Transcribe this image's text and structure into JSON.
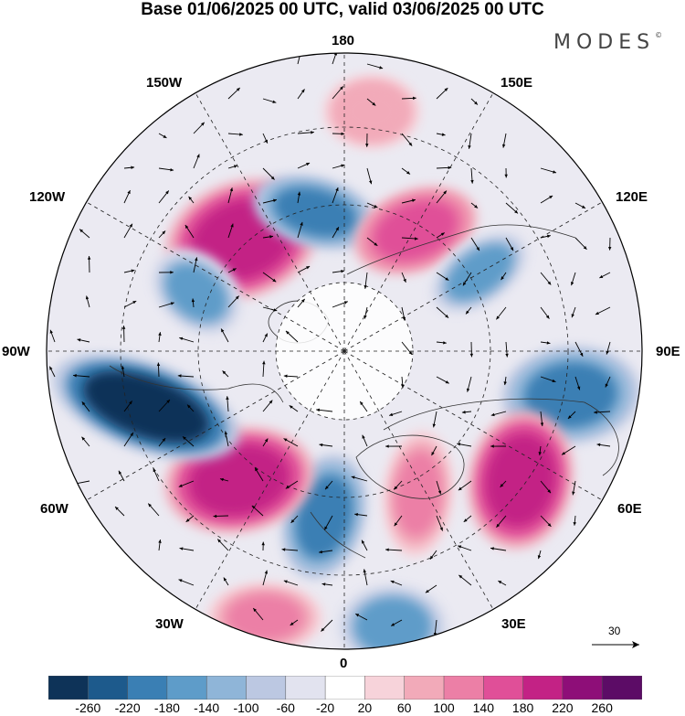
{
  "title": "Base 01/06/2025 00 UTC, valid 03/06/2025 00 UTC",
  "brand": "MODES",
  "brand_mark": "©",
  "longitude_labels": {
    "n180": "180",
    "w150": "150W",
    "e150": "150E",
    "w120": "120W",
    "e120": "120E",
    "w90": "90W",
    "e90": "90E",
    "w60": "60W",
    "e60": "60E",
    "w30": "30W",
    "e30": "30E",
    "s0": "0"
  },
  "reference_vector": "30",
  "colorbar": {
    "ticks": [
      "-260",
      "-220",
      "-180",
      "-140",
      "-100",
      "-60",
      "-20",
      "20",
      "60",
      "100",
      "140",
      "180",
      "220",
      "260"
    ],
    "colors": [
      "#0e3358",
      "#1d5a8c",
      "#3a7fb4",
      "#5e9cc9",
      "#8fb5d8",
      "#bcc8e2",
      "#e2e3ef",
      "#ffffff",
      "#f7d3da",
      "#f2aab9",
      "#ec7fa6",
      "#e04f98",
      "#c32285",
      "#8e0e78",
      "#5c0c66"
    ]
  },
  "chart_data": {
    "type": "heatmap",
    "projection": "north-polar-stereographic",
    "field": "anomaly with wind vectors",
    "anomaly_centers": [
      {
        "lon_label": "150W-120W",
        "sign": "positive",
        "peak": 220
      },
      {
        "lon_label": "150W",
        "sign": "negative",
        "peak": -180
      },
      {
        "lon_label": "180-150E",
        "sign": "positive",
        "peak": 100
      },
      {
        "lon_label": "120E",
        "sign": "positive",
        "peak": 180
      },
      {
        "lon_label": "120E-90E",
        "sign": "negative",
        "peak": -140
      },
      {
        "lon_label": "90E",
        "sign": "negative",
        "peak": -180
      },
      {
        "lon_label": "60E",
        "sign": "positive",
        "peak": 220
      },
      {
        "lon_label": "30E",
        "sign": "positive",
        "peak": 140
      },
      {
        "lon_label": "0-30W",
        "sign": "negative",
        "peak": -180
      },
      {
        "lon_label": "60W",
        "sign": "positive",
        "peak": 220
      },
      {
        "lon_label": "90W",
        "sign": "negative",
        "peak": -260
      },
      {
        "lon_label": "120W",
        "sign": "negative",
        "peak": -140
      },
      {
        "lon_label": "30W",
        "sign": "positive",
        "peak": 140
      },
      {
        "lon_label": "30E",
        "sign": "negative",
        "peak": -140
      }
    ]
  }
}
